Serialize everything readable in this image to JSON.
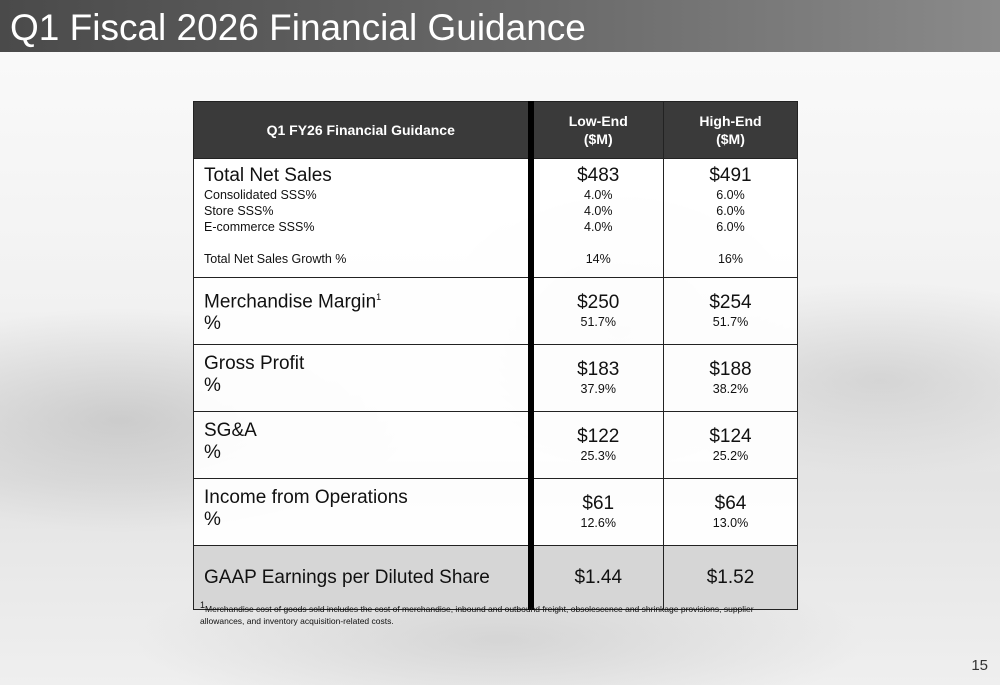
{
  "slide": {
    "title": "Q1 Fiscal 2026 Financial Guidance",
    "page_number": "15"
  },
  "table": {
    "headers": {
      "label": "Q1 FY26 Financial Guidance",
      "low_line1": "Low-End",
      "low_line2": "($M)",
      "high_line1": "High-End",
      "high_line2": "($M)"
    },
    "net_sales": {
      "label": "Total Net Sales",
      "low": "$483",
      "high": "$491",
      "sub": [
        {
          "label": "Consolidated SSS%",
          "low": "4.0%",
          "high": "6.0%"
        },
        {
          "label": "Store SSS%",
          "low": "4.0%",
          "high": "6.0%"
        },
        {
          "label": "E-commerce SSS%",
          "low": "4.0%",
          "high": "6.0%"
        }
      ],
      "growth": {
        "label": "Total Net Sales Growth %",
        "low": "14%",
        "high": "16%"
      }
    },
    "merch_margin": {
      "label": "Merchandise Margin",
      "footnote_mark": "1",
      "pct_label": "%",
      "low": "$250",
      "high": "$254",
      "low_pct": "51.7%",
      "high_pct": "51.7%"
    },
    "gross_profit": {
      "label": "Gross Profit",
      "pct_label": "%",
      "low": "$183",
      "high": "$188",
      "low_pct": "37.9%",
      "high_pct": "38.2%"
    },
    "sga": {
      "label": "SG&A",
      "pct_label": "%",
      "low": "$122",
      "high": "$124",
      "low_pct": "25.3%",
      "high_pct": "25.2%"
    },
    "income_ops": {
      "label": "Income from Operations",
      "pct_label": "%",
      "low": "$61",
      "high": "$64",
      "low_pct": "12.6%",
      "high_pct": "13.0%"
    },
    "eps": {
      "label": "GAAP Earnings per Diluted Share",
      "low": "$1.44",
      "high": "$1.52"
    }
  },
  "footnote": {
    "mark": "1",
    "text": "Merchandise cost of goods sold includes the cost of merchandise, inbound and outbound freight, obsolescence and shrinkage provisions, supplier allowances, and inventory acquisition-related costs."
  }
}
